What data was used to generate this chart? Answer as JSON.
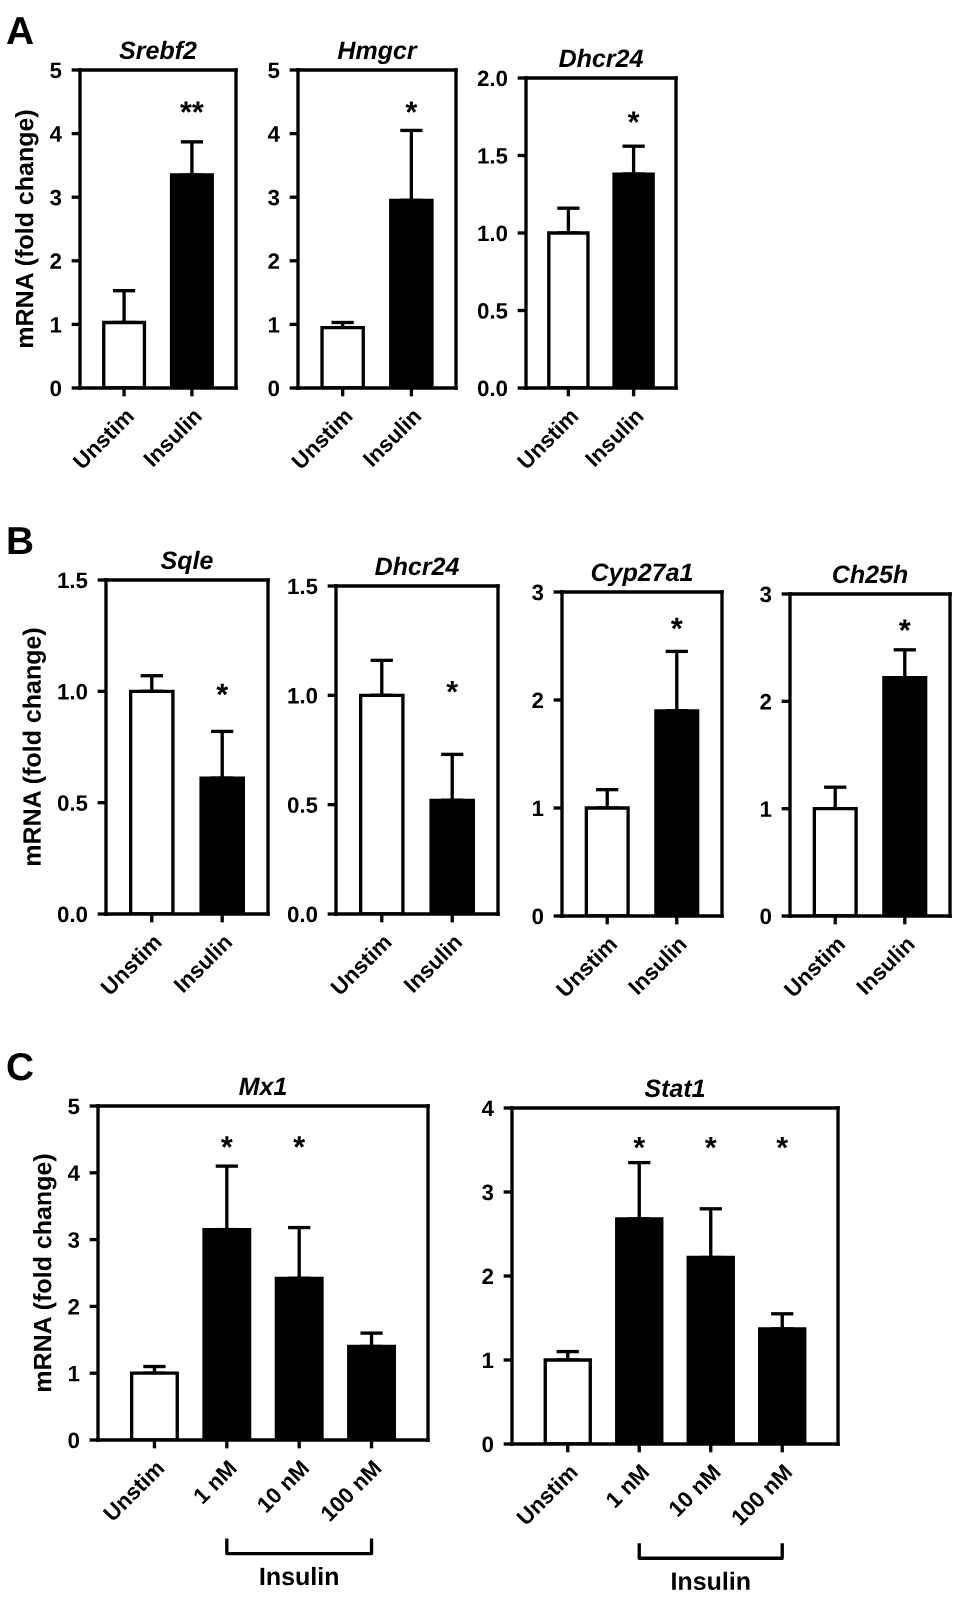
{
  "chart_data": [
    {
      "type": "bar",
      "title": "Srebf2",
      "ylabel": "mRNA (fold change)",
      "categories": [
        "Unstim",
        "Insulin"
      ],
      "values": [
        1.03,
        3.35
      ],
      "colors": [
        "#ffffff",
        "#000000"
      ],
      "errors": [
        [
          1.03,
          1.53
        ],
        [
          3.35,
          3.87
        ]
      ],
      "ylim": [
        0,
        5
      ],
      "yticks": [
        0,
        1,
        2,
        3,
        4,
        5
      ],
      "grid": false,
      "annotations": [
        "A",
        "**"
      ]
    },
    {
      "type": "bar",
      "title": "Hmgcr",
      "categories": [
        "Unstim",
        "Insulin"
      ],
      "values": [
        0.95,
        2.95
      ],
      "colors": [
        "#ffffff",
        "#000000"
      ],
      "errors": [
        [
          0.95,
          1.03
        ],
        [
          2.95,
          4.05
        ]
      ],
      "ylim": [
        0,
        5
      ],
      "yticks": [
        0,
        1,
        2,
        3,
        4,
        5
      ],
      "grid": false,
      "annotations": [
        "*"
      ]
    },
    {
      "type": "bar",
      "title": "Dhcr24",
      "categories": [
        "Unstim",
        "Insulin"
      ],
      "values": [
        1.0,
        1.38
      ],
      "colors": [
        "#ffffff",
        "#000000"
      ],
      "errors": [
        [
          1.0,
          1.16
        ],
        [
          1.38,
          1.56
        ]
      ],
      "ylim": [
        0,
        2
      ],
      "yticks": [
        {
          "value": 0,
          "label": "0.0"
        },
        {
          "value": 0.5,
          "label": "0.5"
        },
        {
          "value": 1,
          "label": "1.0"
        },
        {
          "value": 1.5,
          "label": "1.5"
        },
        {
          "value": 2,
          "label": "2.0"
        }
      ],
      "grid": false,
      "annotations": [
        "*"
      ]
    },
    {
      "type": "bar",
      "title": "Sqle",
      "ylabel": "mRNA (fold change)",
      "categories": [
        "Unstim",
        "Insulin"
      ],
      "values": [
        1.0,
        0.61
      ],
      "colors": [
        "#ffffff",
        "#000000"
      ],
      "errors": [
        [
          1.0,
          1.07
        ],
        [
          0.61,
          0.82
        ]
      ],
      "ylim": [
        0,
        1.5
      ],
      "yticks": [
        {
          "value": 0,
          "label": "0.0"
        },
        {
          "value": 0.5,
          "label": "0.5"
        },
        {
          "value": 1,
          "label": "1.0"
        },
        {
          "value": 1.5,
          "label": "1.5"
        }
      ],
      "grid": false,
      "annotations": [
        "B",
        "*"
      ]
    },
    {
      "type": "bar",
      "title": "Dhcr24",
      "categories": [
        "Unstim",
        "Insulin"
      ],
      "values": [
        1.0,
        0.52
      ],
      "colors": [
        "#ffffff",
        "#000000"
      ],
      "errors": [
        [
          1.0,
          1.16
        ],
        [
          0.52,
          0.73
        ]
      ],
      "ylim": [
        0,
        1.5
      ],
      "yticks": [
        {
          "value": 0,
          "label": "0.0"
        },
        {
          "value": 0.5,
          "label": "0.5"
        },
        {
          "value": 1,
          "label": "1.0"
        },
        {
          "value": 1.5,
          "label": "1.5"
        }
      ],
      "grid": false,
      "annotations": [
        "*"
      ]
    },
    {
      "type": "bar",
      "title": "Cyp27a1",
      "categories": [
        "Unstim",
        "Insulin"
      ],
      "values": [
        1.0,
        1.9
      ],
      "colors": [
        "#ffffff",
        "#000000"
      ],
      "errors": [
        [
          1.0,
          1.17
        ],
        [
          1.9,
          2.45
        ]
      ],
      "ylim": [
        0,
        3
      ],
      "yticks": [
        0,
        1,
        2,
        3
      ],
      "grid": false,
      "annotations": [
        "*"
      ]
    },
    {
      "type": "bar",
      "title": "Ch25h",
      "categories": [
        "Unstim",
        "Insulin"
      ],
      "values": [
        1.0,
        2.22
      ],
      "colors": [
        "#ffffff",
        "#000000"
      ],
      "errors": [
        [
          1.0,
          1.2
        ],
        [
          2.22,
          2.48
        ]
      ],
      "ylim": [
        0,
        3
      ],
      "yticks": [
        0,
        1,
        2,
        3
      ],
      "grid": false,
      "annotations": [
        "*"
      ]
    },
    {
      "type": "bar",
      "title": "Mx1",
      "ylabel": "mRNA (fold change)",
      "categories": [
        "Unstim",
        "1 nM",
        "10 nM",
        "100 nM"
      ],
      "values": [
        1.0,
        3.15,
        2.42,
        1.4
      ],
      "colors": [
        "#ffffff",
        "#000000",
        "#000000",
        "#000000"
      ],
      "errors": [
        [
          1.0,
          1.1
        ],
        [
          3.15,
          4.1
        ],
        [
          2.42,
          3.18
        ],
        [
          1.4,
          1.6
        ]
      ],
      "ylim": [
        0,
        5
      ],
      "yticks": [
        0,
        1,
        2,
        3,
        4,
        5
      ],
      "grid": false,
      "annotations": [
        "C",
        "*",
        "*",
        "Insulin"
      ]
    },
    {
      "type": "bar",
      "title": "Stat1",
      "categories": [
        "Unstim",
        "1 nM",
        "10 nM",
        "100 nM"
      ],
      "values": [
        1.0,
        2.68,
        2.22,
        1.37
      ],
      "colors": [
        "#ffffff",
        "#000000",
        "#000000",
        "#000000"
      ],
      "errors": [
        [
          1.0,
          1.1
        ],
        [
          2.68,
          3.35
        ],
        [
          2.22,
          2.8
        ],
        [
          1.37,
          1.55
        ]
      ],
      "ylim": [
        0,
        4
      ],
      "yticks": [
        0,
        1,
        2,
        3,
        4
      ],
      "grid": false,
      "annotations": [
        "*",
        "*",
        "*",
        "Insulin"
      ]
    }
  ]
}
